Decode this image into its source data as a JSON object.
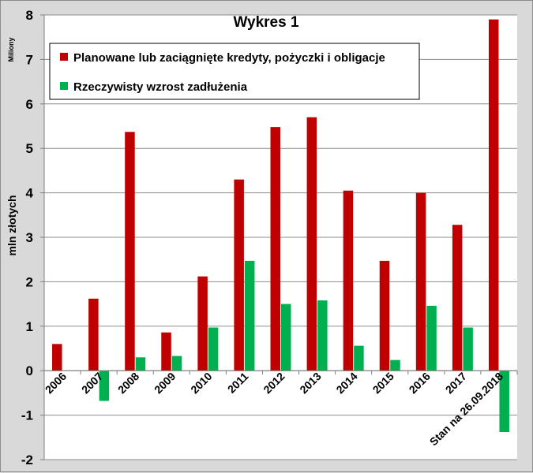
{
  "chart_data": {
    "type": "bar",
    "title": "Wykres 1",
    "ylabel": "mln złotych",
    "units_label": "Miliony",
    "ylim": [
      -2,
      8
    ],
    "yticks": [
      -2,
      -1,
      0,
      1,
      2,
      3,
      4,
      5,
      6,
      7,
      8
    ],
    "grid": true,
    "legend_position": "top-left",
    "categories": [
      "2006",
      "2007",
      "2008",
      "2009",
      "2010",
      "2011",
      "2012",
      "2013",
      "2014",
      "2015",
      "2016",
      "2017",
      "Stan na 26.09.2018"
    ],
    "series": [
      {
        "name": "Planowane lub zaciągnięte kredyty, pożyczki i obligacje",
        "color": "#c00000",
        "values": [
          0.6,
          1.62,
          5.37,
          0.86,
          2.12,
          4.3,
          5.48,
          5.7,
          4.05,
          2.47,
          4.0,
          3.28,
          7.9
        ]
      },
      {
        "name": "Rzeczywisty wzrost zadłużenia",
        "color": "#00b050",
        "values": [
          0,
          -0.68,
          0.3,
          0.33,
          0.97,
          2.47,
          1.5,
          1.58,
          0.56,
          0.24,
          1.46,
          0.97,
          -1.38
        ]
      }
    ]
  }
}
